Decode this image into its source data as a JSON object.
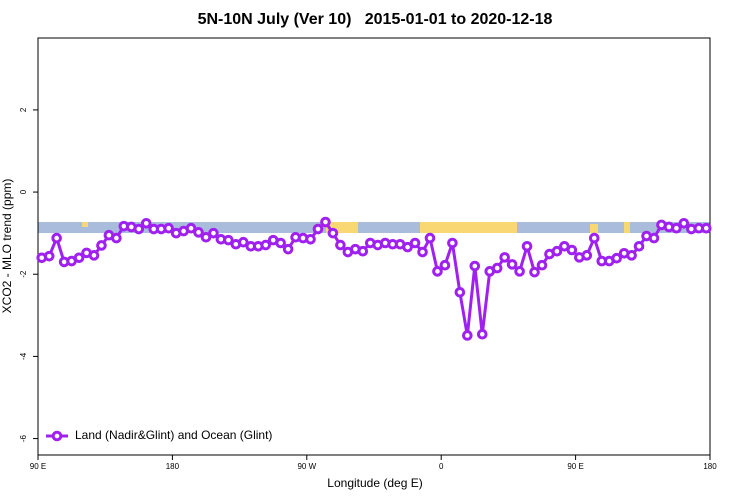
{
  "chart_data": {
    "type": "line",
    "title": "5N-10N July (Ver 10)   2015-01-01 to 2020-12-18",
    "xlabel": "Longitude (deg E)",
    "ylabel": "XCO2 - MLO trend (ppm)",
    "x": [
      92.5,
      97.5,
      102.5,
      107.5,
      112.5,
      117.5,
      122.5,
      127.5,
      132.5,
      137.5,
      142.5,
      147.5,
      152.5,
      157.5,
      162.5,
      167.5,
      172.5,
      177.5,
      182.5,
      187.5,
      192.5,
      197.5,
      202.5,
      207.5,
      212.5,
      217.5,
      222.5,
      227.5,
      232.5,
      237.5,
      242.5,
      247.5,
      252.5,
      257.5,
      262.5,
      267.5,
      272.5,
      277.5,
      282.5,
      287.5,
      292.5,
      297.5,
      302.5,
      307.5,
      312.5,
      317.5,
      322.5,
      327.5,
      332.5,
      337.5,
      342.5,
      347.5,
      352.5,
      357.5,
      362.5,
      367.5,
      372.5,
      377.5,
      382.5,
      387.5,
      392.5,
      397.5,
      402.5,
      407.5,
      412.5,
      417.5,
      422.5,
      427.5,
      432.5,
      437.5,
      442.5,
      447.5,
      452.5,
      457.5,
      462.5,
      467.5,
      472.5,
      477.5,
      482.5,
      487.5,
      492.5,
      497.5,
      502.5,
      507.5,
      512.5,
      517.5,
      522.5,
      527.5,
      532.5,
      537.5
    ],
    "series": [
      {
        "name": "Land (Nadir&Glint) and Ocean (Glint)",
        "color": "#a020f0",
        "values": [
          -1.6,
          -1.56,
          -1.12,
          -1.7,
          -1.68,
          -1.6,
          -1.48,
          -1.54,
          -1.3,
          -1.05,
          -1.12,
          -0.83,
          -0.85,
          -0.9,
          -0.76,
          -0.9,
          -0.9,
          -0.88,
          -1.0,
          -0.95,
          -0.88,
          -0.98,
          -1.1,
          -1.0,
          -1.15,
          -1.17,
          -1.27,
          -1.22,
          -1.32,
          -1.32,
          -1.29,
          -1.17,
          -1.24,
          -1.39,
          -1.1,
          -1.12,
          -1.15,
          -0.9,
          -0.73,
          -1.0,
          -1.29,
          -1.46,
          -1.39,
          -1.44,
          -1.24,
          -1.29,
          -1.24,
          -1.27,
          -1.27,
          -1.34,
          -1.24,
          -1.46,
          -1.12,
          -1.93,
          -1.78,
          -1.24,
          -2.44,
          -3.49,
          -1.8,
          -3.46,
          -1.93,
          -1.85,
          -1.59,
          -1.76,
          -1.93,
          -1.32,
          -1.95,
          -1.78,
          -1.51,
          -1.44,
          -1.32,
          -1.41,
          -1.59,
          -1.54,
          -1.12,
          -1.68,
          -1.68,
          -1.61,
          -1.49,
          -1.54,
          -1.32,
          -1.07,
          -1.12,
          -0.8,
          -0.85,
          -0.88,
          -0.76,
          -0.9,
          -0.88,
          -0.88
        ]
      }
    ],
    "xlim": [
      90,
      540
    ],
    "xticks": [
      {
        "value": 90,
        "label": "90 E"
      },
      180,
      {
        "value": 270,
        "label": "90 W"
      },
      {
        "value": 360,
        "label": "0"
      },
      {
        "value": 450,
        "label": "90 E"
      },
      {
        "value": 540,
        "label": "180"
      }
    ],
    "ylim": [
      -6.4,
      3.75
    ],
    "yticks": [
      -6,
      -4,
      -2,
      0,
      2
    ],
    "legend": "bottom-left"
  }
}
